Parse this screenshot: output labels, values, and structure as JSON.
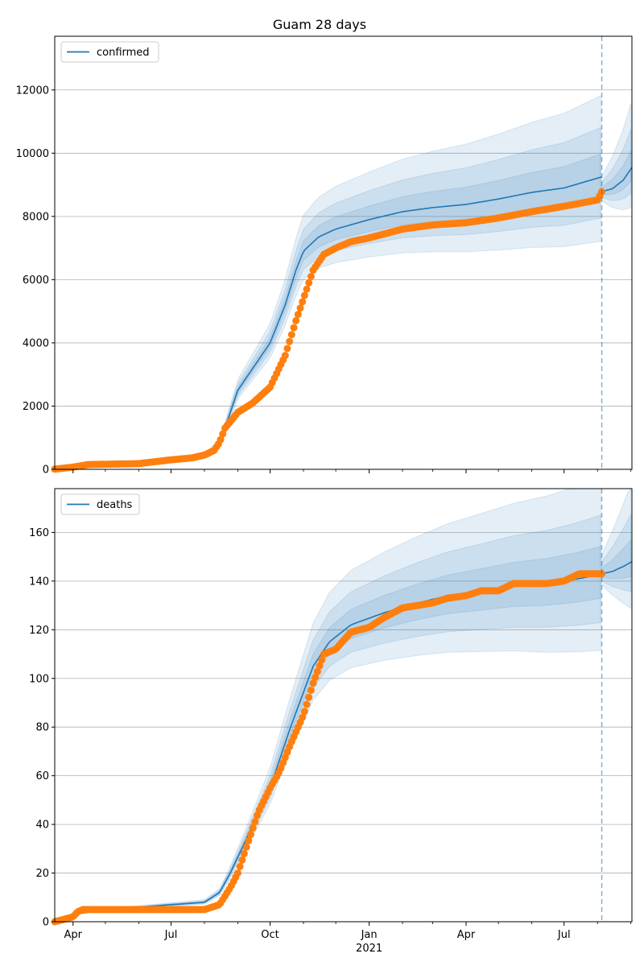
{
  "figure": {
    "title": "Guam 28 days",
    "colors": {
      "model": "#1f77b4",
      "observed": "#ff7f0e",
      "band": "#1f77b4",
      "grid": "#b0b0b0",
      "vline": "#1f77b4"
    }
  },
  "chart_data": [
    {
      "type": "line",
      "title": "Guam 28 days",
      "legend": [
        "confirmed"
      ],
      "legend_position": "top-left",
      "grid": "horizontal",
      "x_type": "date",
      "xlim": [
        "2020-03-15",
        "2021-09-02"
      ],
      "ylim": [
        0,
        13700
      ],
      "yticks": [
        0,
        2000,
        4000,
        6000,
        8000,
        10000,
        12000
      ],
      "forecast_start": "2021-08-05",
      "series": [
        {
          "name": "confirmed",
          "kind": "model",
          "points": [
            [
              "2020-03-15",
              5
            ],
            [
              "2020-04-01",
              60
            ],
            [
              "2020-05-01",
              150
            ],
            [
              "2020-06-01",
              190
            ],
            [
              "2020-07-01",
              260
            ],
            [
              "2020-07-20",
              350
            ],
            [
              "2020-08-01",
              450
            ],
            [
              "2020-08-15",
              800
            ],
            [
              "2020-08-25",
              1800
            ],
            [
              "2020-09-01",
              2500
            ],
            [
              "2020-09-15",
              3200
            ],
            [
              "2020-10-01",
              4000
            ],
            [
              "2020-10-15",
              5200
            ],
            [
              "2020-10-25",
              6300
            ],
            [
              "2020-11-01",
              6900
            ],
            [
              "2020-11-15",
              7350
            ],
            [
              "2020-12-01",
              7600
            ],
            [
              "2021-01-01",
              7900
            ],
            [
              "2021-02-01",
              8150
            ],
            [
              "2021-03-01",
              8280
            ],
            [
              "2021-04-01",
              8380
            ],
            [
              "2021-05-01",
              8550
            ],
            [
              "2021-06-01",
              8760
            ],
            [
              "2021-07-01",
              8900
            ],
            [
              "2021-08-05",
              9250
            ]
          ]
        },
        {
          "name": "forecast",
          "kind": "forecast",
          "points": [
            [
              "2021-08-05",
              8780
            ],
            [
              "2021-08-15",
              8880
            ],
            [
              "2021-08-25",
              9150
            ],
            [
              "2021-09-02",
              9550
            ]
          ]
        },
        {
          "name": "observed",
          "kind": "observed",
          "points": [
            [
              "2020-03-15",
              5
            ],
            [
              "2020-04-01",
              70
            ],
            [
              "2020-04-15",
              150
            ],
            [
              "2020-05-01",
              160
            ],
            [
              "2020-06-01",
              180
            ],
            [
              "2020-07-01",
              300
            ],
            [
              "2020-07-20",
              360
            ],
            [
              "2020-08-01",
              450
            ],
            [
              "2020-08-10",
              600
            ],
            [
              "2020-08-15",
              850
            ],
            [
              "2020-08-20",
              1300
            ],
            [
              "2020-09-01",
              1800
            ],
            [
              "2020-09-15",
              2100
            ],
            [
              "2020-10-01",
              2600
            ],
            [
              "2020-10-15",
              3600
            ],
            [
              "2020-10-25",
              4700
            ],
            [
              "2020-11-01",
              5400
            ],
            [
              "2020-11-10",
              6300
            ],
            [
              "2020-11-20",
              6800
            ],
            [
              "2020-12-01",
              7000
            ],
            [
              "2020-12-15",
              7200
            ],
            [
              "2021-01-01",
              7320
            ],
            [
              "2021-02-01",
              7600
            ],
            [
              "2021-03-01",
              7730
            ],
            [
              "2021-04-01",
              7800
            ],
            [
              "2021-05-01",
              7950
            ],
            [
              "2021-06-01",
              8150
            ],
            [
              "2021-07-01",
              8320
            ],
            [
              "2021-08-01",
              8520
            ],
            [
              "2021-08-05",
              8780
            ]
          ]
        }
      ]
    },
    {
      "type": "line",
      "title": "",
      "legend": [
        "deaths"
      ],
      "legend_position": "top-left",
      "grid": "horizontal",
      "x_type": "date",
      "xlim": [
        "2020-03-15",
        "2021-09-02"
      ],
      "ylim": [
        0,
        178
      ],
      "yticks": [
        0,
        20,
        40,
        60,
        80,
        100,
        120,
        140,
        160
      ],
      "xtick_labels": [
        "Apr",
        "Jul",
        "Oct",
        "Jan",
        "Apr",
        "Jul"
      ],
      "xtick_sublabel": "2021",
      "forecast_start": "2021-08-05",
      "series": [
        {
          "name": "deaths",
          "kind": "model",
          "points": [
            [
              "2020-03-15",
              1
            ],
            [
              "2020-04-01",
              3
            ],
            [
              "2020-05-01",
              5
            ],
            [
              "2020-06-01",
              6
            ],
            [
              "2020-07-01",
              7
            ],
            [
              "2020-08-01",
              8
            ],
            [
              "2020-08-15",
              12
            ],
            [
              "2020-08-25",
              20
            ],
            [
              "2020-09-10",
              35
            ],
            [
              "2020-10-01",
              55
            ],
            [
              "2020-10-20",
              80
            ],
            [
              "2020-11-10",
              105
            ],
            [
              "2020-11-25",
              115
            ],
            [
              "2020-12-15",
              122
            ],
            [
              "2021-01-15",
              127
            ],
            [
              "2021-02-15",
              131
            ],
            [
              "2021-03-15",
              134
            ],
            [
              "2021-04-15",
              136
            ],
            [
              "2021-05-15",
              138
            ],
            [
              "2021-06-15",
              139
            ],
            [
              "2021-07-15",
              141
            ],
            [
              "2021-08-05",
              143
            ]
          ]
        },
        {
          "name": "forecast",
          "kind": "forecast",
          "points": [
            [
              "2021-08-05",
              143
            ],
            [
              "2021-08-15",
              144
            ],
            [
              "2021-08-25",
              146
            ],
            [
              "2021-09-02",
              148
            ]
          ]
        },
        {
          "name": "observed",
          "kind": "observed",
          "points": [
            [
              "2020-03-15",
              0
            ],
            [
              "2020-04-01",
              2
            ],
            [
              "2020-04-05",
              4
            ],
            [
              "2020-04-10",
              5
            ],
            [
              "2020-05-01",
              5
            ],
            [
              "2020-06-01",
              5
            ],
            [
              "2020-07-01",
              5
            ],
            [
              "2020-08-01",
              5
            ],
            [
              "2020-08-15",
              7
            ],
            [
              "2020-08-25",
              14
            ],
            [
              "2020-09-01",
              20
            ],
            [
              "2020-09-10",
              32
            ],
            [
              "2020-09-20",
              45
            ],
            [
              "2020-10-01",
              55
            ],
            [
              "2020-10-10",
              62
            ],
            [
              "2020-10-20",
              73
            ],
            [
              "2020-11-01",
              85
            ],
            [
              "2020-11-10",
              98
            ],
            [
              "2020-11-20",
              110
            ],
            [
              "2020-12-01",
              112
            ],
            [
              "2020-12-15",
              119
            ],
            [
              "2021-01-01",
              121
            ],
            [
              "2021-01-15",
              125
            ],
            [
              "2021-02-01",
              129
            ],
            [
              "2021-02-15",
              130
            ],
            [
              "2021-03-01",
              131
            ],
            [
              "2021-03-15",
              133
            ],
            [
              "2021-04-01",
              134
            ],
            [
              "2021-04-15",
              136
            ],
            [
              "2021-05-01",
              136
            ],
            [
              "2021-05-15",
              139
            ],
            [
              "2021-06-01",
              139
            ],
            [
              "2021-06-15",
              139
            ],
            [
              "2021-07-01",
              140
            ],
            [
              "2021-07-15",
              143
            ],
            [
              "2021-08-05",
              143
            ]
          ]
        }
      ]
    }
  ]
}
